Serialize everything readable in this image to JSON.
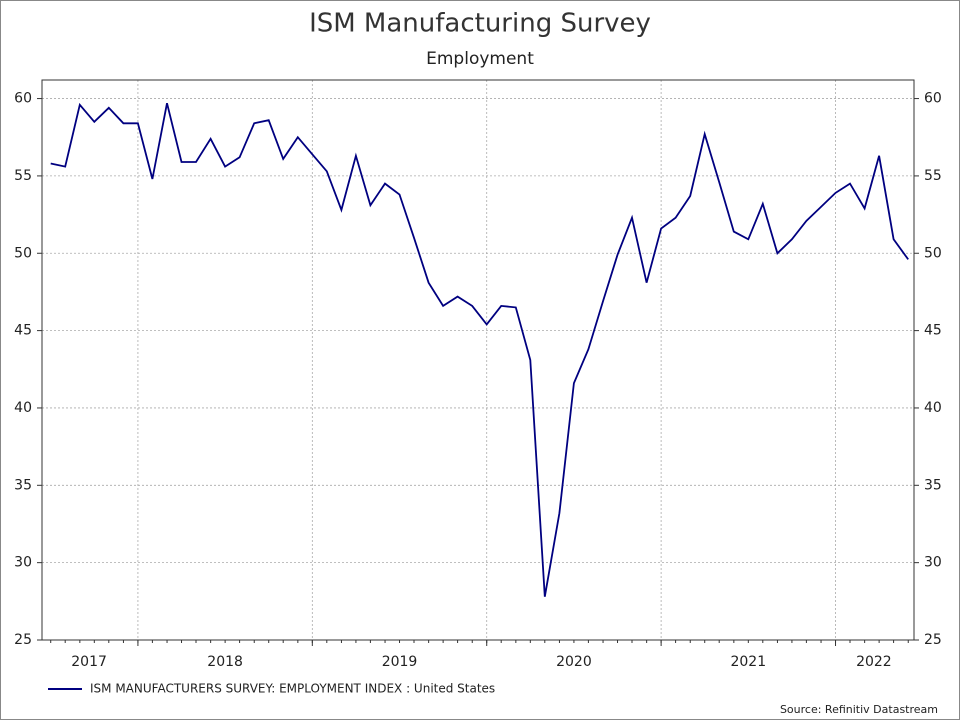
{
  "chart_data": {
    "type": "line",
    "title": "ISM Manufacturing Survey",
    "subtitle": "Employment",
    "source": "Source: Refinitiv Datastream",
    "x": [
      2017.5,
      2017.583,
      2017.667,
      2017.75,
      2017.833,
      2017.917,
      2018.0,
      2018.083,
      2018.167,
      2018.25,
      2018.333,
      2018.417,
      2018.5,
      2018.583,
      2018.667,
      2018.75,
      2018.833,
      2018.917,
      2019.0,
      2019.083,
      2019.167,
      2019.25,
      2019.333,
      2019.417,
      2019.5,
      2019.583,
      2019.667,
      2019.75,
      2019.833,
      2019.917,
      2020.0,
      2020.083,
      2020.167,
      2020.25,
      2020.333,
      2020.417,
      2020.5,
      2020.583,
      2020.667,
      2020.75,
      2020.833,
      2020.917,
      2021.0,
      2021.083,
      2021.167,
      2021.25,
      2021.333,
      2021.417,
      2021.5,
      2021.583,
      2021.667,
      2021.75,
      2021.833,
      2021.917,
      2022.0,
      2022.083,
      2022.167,
      2022.25,
      2022.333,
      2022.417
    ],
    "series": [
      {
        "name": "ISM MANUFACTURERS SURVEY: EMPLOYMENT INDEX : United States",
        "color": "#000080",
        "values": [
          55.8,
          55.6,
          59.6,
          58.5,
          59.4,
          58.4,
          58.4,
          54.8,
          59.7,
          55.9,
          55.9,
          57.4,
          55.6,
          56.2,
          58.4,
          58.6,
          56.1,
          57.5,
          56.4,
          55.3,
          52.8,
          56.3,
          53.1,
          54.5,
          53.8,
          51.0,
          48.1,
          46.6,
          47.2,
          46.6,
          45.4,
          46.6,
          46.5,
          43.1,
          27.8,
          33.2,
          41.6,
          43.8,
          46.9,
          49.9,
          52.3,
          48.1,
          51.6,
          52.3,
          53.7,
          57.7,
          54.6,
          51.4,
          50.9,
          53.2,
          50.0,
          50.9,
          52.1,
          53.0,
          53.9,
          54.5,
          52.9,
          56.3,
          50.9,
          49.6
        ]
      }
    ],
    "xlim": [
      2017.45,
      2022.45
    ],
    "xticks": [
      {
        "value": 2017.72,
        "label": "2017"
      },
      {
        "value": 2018.5,
        "label": "2018"
      },
      {
        "value": 2019.5,
        "label": "2019"
      },
      {
        "value": 2020.5,
        "label": "2020"
      },
      {
        "value": 2021.5,
        "label": "2021"
      },
      {
        "value": 2022.22,
        "label": "2022"
      }
    ],
    "xgrid": [
      2018,
      2019,
      2020,
      2021,
      2022
    ],
    "ylim": [
      25,
      61.2
    ],
    "yticks": [
      25,
      30,
      35,
      40,
      45,
      50,
      55,
      60
    ],
    "grid": true,
    "legend": "bottom"
  }
}
